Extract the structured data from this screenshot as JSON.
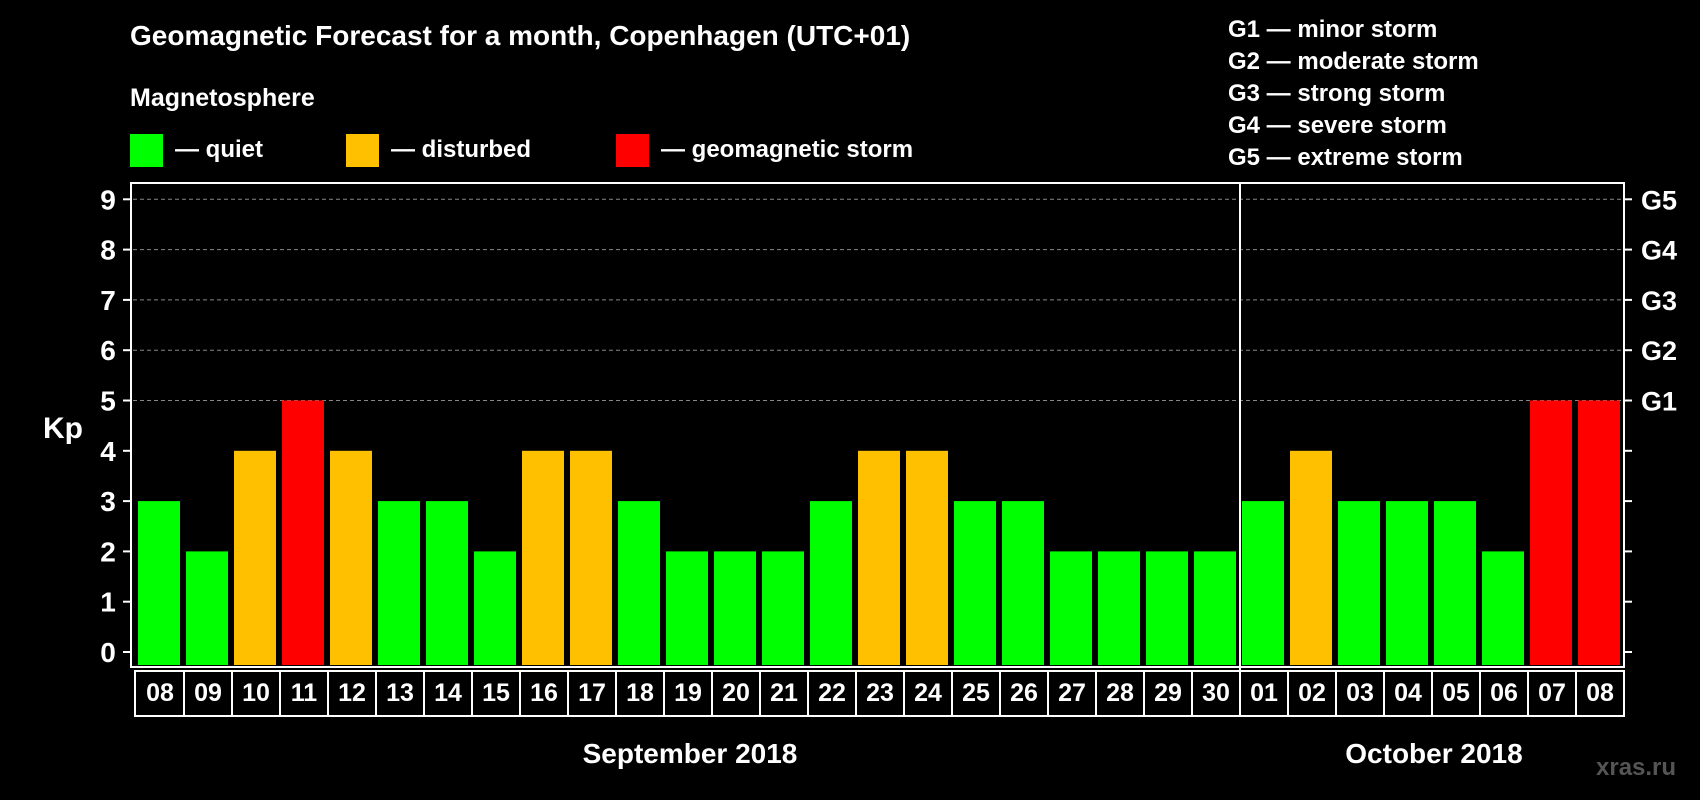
{
  "header": {
    "title": "Geomagnetic Forecast for a month, Copenhagen (UTC+01)",
    "subtitle": "Magnetosphere"
  },
  "legend": [
    {
      "label": "— quiet",
      "color": "#00ff00"
    },
    {
      "label": "— disturbed",
      "color": "#ffc000"
    },
    {
      "label": "— geomagnetic storm",
      "color": "#ff0000"
    }
  ],
  "storm_scale": [
    "G1 — minor storm",
    "G2 — moderate storm",
    "G3 — strong storm",
    "G4 — severe storm",
    "G5 — extreme storm"
  ],
  "watermark": "xras.ru",
  "chart_data": {
    "type": "bar",
    "ylabel": "Kp",
    "ylim": [
      0,
      9
    ],
    "yticks": [
      "0",
      "1",
      "2",
      "3",
      "4",
      "5",
      "6",
      "7",
      "8",
      "9"
    ],
    "right_axis_labels": [
      {
        "kp": 5,
        "label": "G1"
      },
      {
        "kp": 6,
        "label": "G2"
      },
      {
        "kp": 7,
        "label": "G3"
      },
      {
        "kp": 8,
        "label": "G4"
      },
      {
        "kp": 9,
        "label": "G5"
      }
    ],
    "grid": "dashed horizontal at Kp 5–9",
    "categories": [
      "08",
      "09",
      "10",
      "11",
      "12",
      "13",
      "14",
      "15",
      "16",
      "17",
      "18",
      "19",
      "20",
      "21",
      "22",
      "23",
      "24",
      "25",
      "26",
      "27",
      "28",
      "29",
      "30",
      "01",
      "02",
      "03",
      "04",
      "05",
      "06",
      "07",
      "08"
    ],
    "values": [
      3,
      2,
      4,
      5,
      4,
      3,
      3,
      2,
      4,
      4,
      3,
      2,
      2,
      2,
      3,
      4,
      4,
      3,
      3,
      2,
      2,
      2,
      2,
      3,
      4,
      3,
      3,
      3,
      2,
      5,
      5
    ],
    "months": [
      {
        "label": "September 2018",
        "first_index": 0,
        "last_index": 22
      },
      {
        "label": "October 2018",
        "first_index": 23,
        "last_index": 30
      }
    ],
    "colors": {
      "quiet": "#00ff00",
      "disturbed": "#ffc000",
      "storm": "#ff0000"
    }
  }
}
